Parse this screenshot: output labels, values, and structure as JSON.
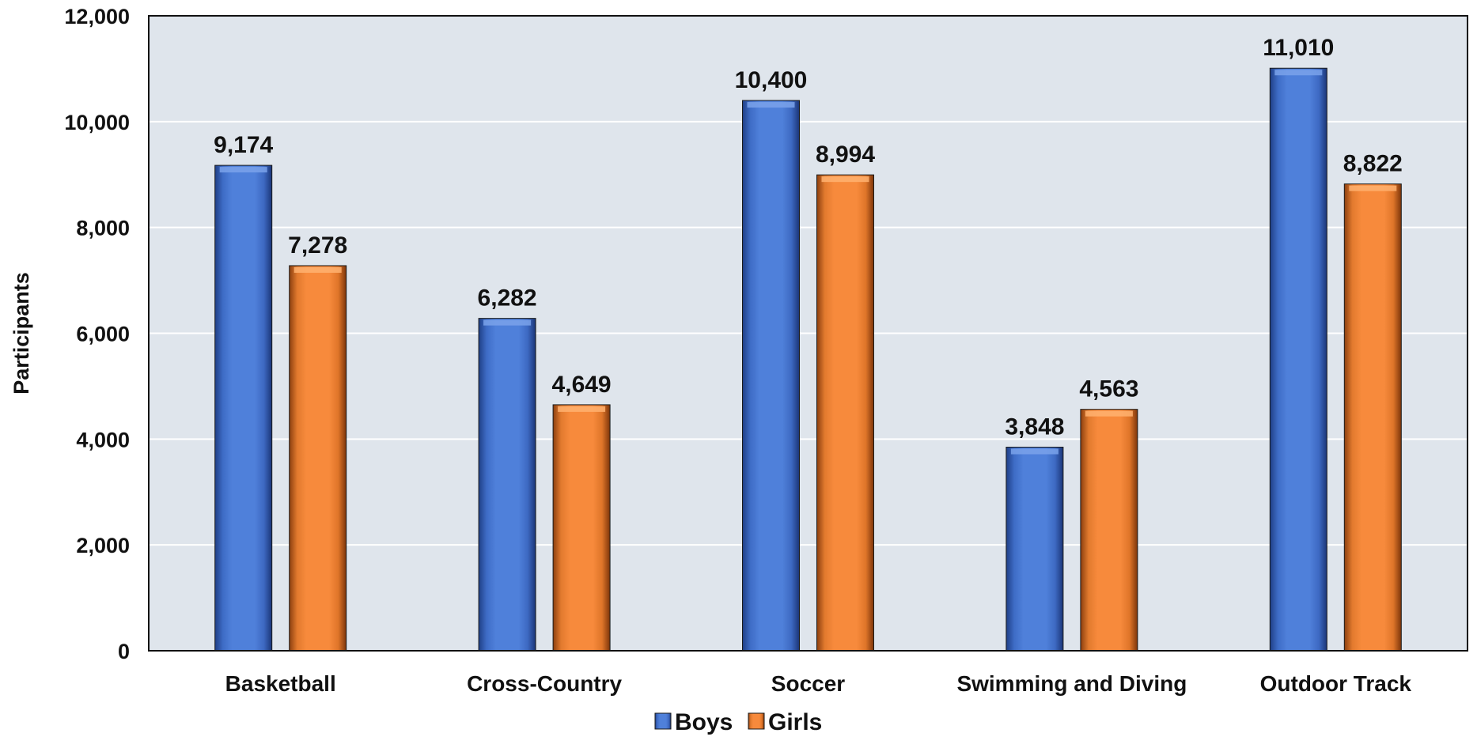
{
  "chart_data": {
    "type": "bar",
    "categories": [
      "Basketball",
      "Cross-Country",
      "Soccer",
      "Swimming and Diving",
      "Outdoor Track"
    ],
    "series": [
      {
        "name": "Boys",
        "values": [
          9174,
          6282,
          10400,
          3848,
          11010
        ],
        "labels": [
          "9,174",
          "6,282",
          "10,400",
          "3,848",
          "11,010"
        ],
        "color": "#4a7bd5"
      },
      {
        "name": "Girls",
        "values": [
          7278,
          4649,
          8994,
          4563,
          8822
        ],
        "labels": [
          "7,278",
          "4,649",
          "8,994",
          "4,563",
          "8,822"
        ],
        "color": "#f5883a"
      }
    ],
    "ylabel": "Participants",
    "ylim": [
      0,
      12000
    ],
    "yticks": [
      0,
      2000,
      4000,
      6000,
      8000,
      10000,
      12000
    ],
    "ytick_labels": [
      "0",
      "2,000",
      "4,000",
      "6,000",
      "8,000",
      "10,000",
      "12,000"
    ],
    "grid": true,
    "plot_background": "#dfe5ec",
    "legend_position": "bottom-center"
  }
}
